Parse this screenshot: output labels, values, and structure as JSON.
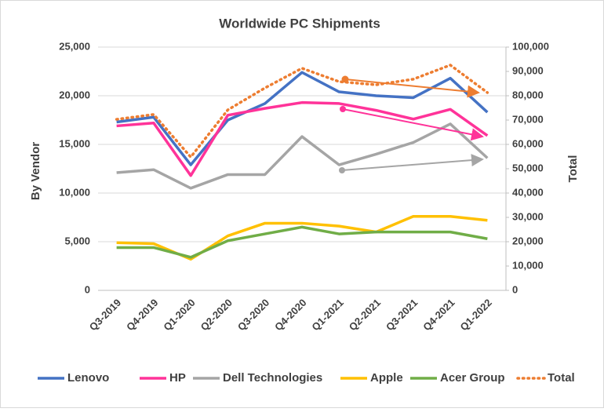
{
  "chart_data": {
    "type": "line",
    "title": "Worldwide PC Shipments",
    "y_label": "By Vendor",
    "y2_label": "Total",
    "categories": [
      "Q3-2019",
      "Q4-2019",
      "Q1-2020",
      "Q2-2020",
      "Q3-2020",
      "Q4-2020",
      "Q1-2021",
      "Q2-2021",
      "Q3-2021",
      "Q4-2021",
      "Q1-2022"
    ],
    "ylim": [
      0,
      25000
    ],
    "yticks": [
      0,
      {
        "value": 5000,
        "label": "5,000"
      },
      {
        "value": 10000,
        "label": "10,000"
      },
      {
        "value": 15000,
        "label": "15,000"
      },
      {
        "value": 20000,
        "label": "20,000"
      },
      {
        "value": 25000,
        "label": "25,000"
      }
    ],
    "y2lim": [
      0,
      100000
    ],
    "y2ticks": [
      0,
      {
        "value": 10000,
        "label": "10,000"
      },
      {
        "value": 20000,
        "label": "20,000"
      },
      {
        "value": 30000,
        "label": "30,000"
      },
      {
        "value": 40000,
        "label": "40,000"
      },
      {
        "value": 50000,
        "label": "50,000"
      },
      {
        "value": 60000,
        "label": "60,000"
      },
      {
        "value": 70000,
        "label": "70,000"
      },
      {
        "value": 80000,
        "label": "80,000"
      },
      {
        "value": 90000,
        "label": "90,000"
      },
      {
        "value": 100000,
        "label": "100,000"
      }
    ],
    "grid": true,
    "series": [
      {
        "name": "Lenovo",
        "color": "#4472c4",
        "values": [
          17300,
          17800,
          12900,
          17500,
          19200,
          22400,
          20400,
          20000,
          19800,
          21800,
          18300
        ]
      },
      {
        "name": "HP",
        "color": "#ff3399",
        "values": [
          16900,
          17200,
          11800,
          18000,
          18700,
          19300,
          19200,
          18500,
          17600,
          18600,
          15900
        ]
      },
      {
        "name": "Dell Technologies",
        "color": "#a5a5a5",
        "values": [
          12100,
          12400,
          10500,
          11900,
          11900,
          15800,
          12900,
          14000,
          15200,
          17100,
          13600
        ]
      },
      {
        "name": "Apple",
        "color": "#ffc000",
        "values": [
          4900,
          4800,
          3200,
          5600,
          6900,
          6900,
          6600,
          6000,
          7600,
          7600,
          7200
        ]
      },
      {
        "name": "Acer Group",
        "color": "#70ad47",
        "values": [
          4400,
          4400,
          3400,
          5100,
          5800,
          6500,
          5800,
          6000,
          6000,
          6000,
          5300
        ]
      },
      {
        "name": "Total",
        "color": "#ed7d31",
        "axis": "y2",
        "dashed": true,
        "values": [
          70300,
          72300,
          54800,
          74200,
          83200,
          91300,
          85800,
          84500,
          86800,
          92600,
          81300
        ]
      }
    ]
  }
}
